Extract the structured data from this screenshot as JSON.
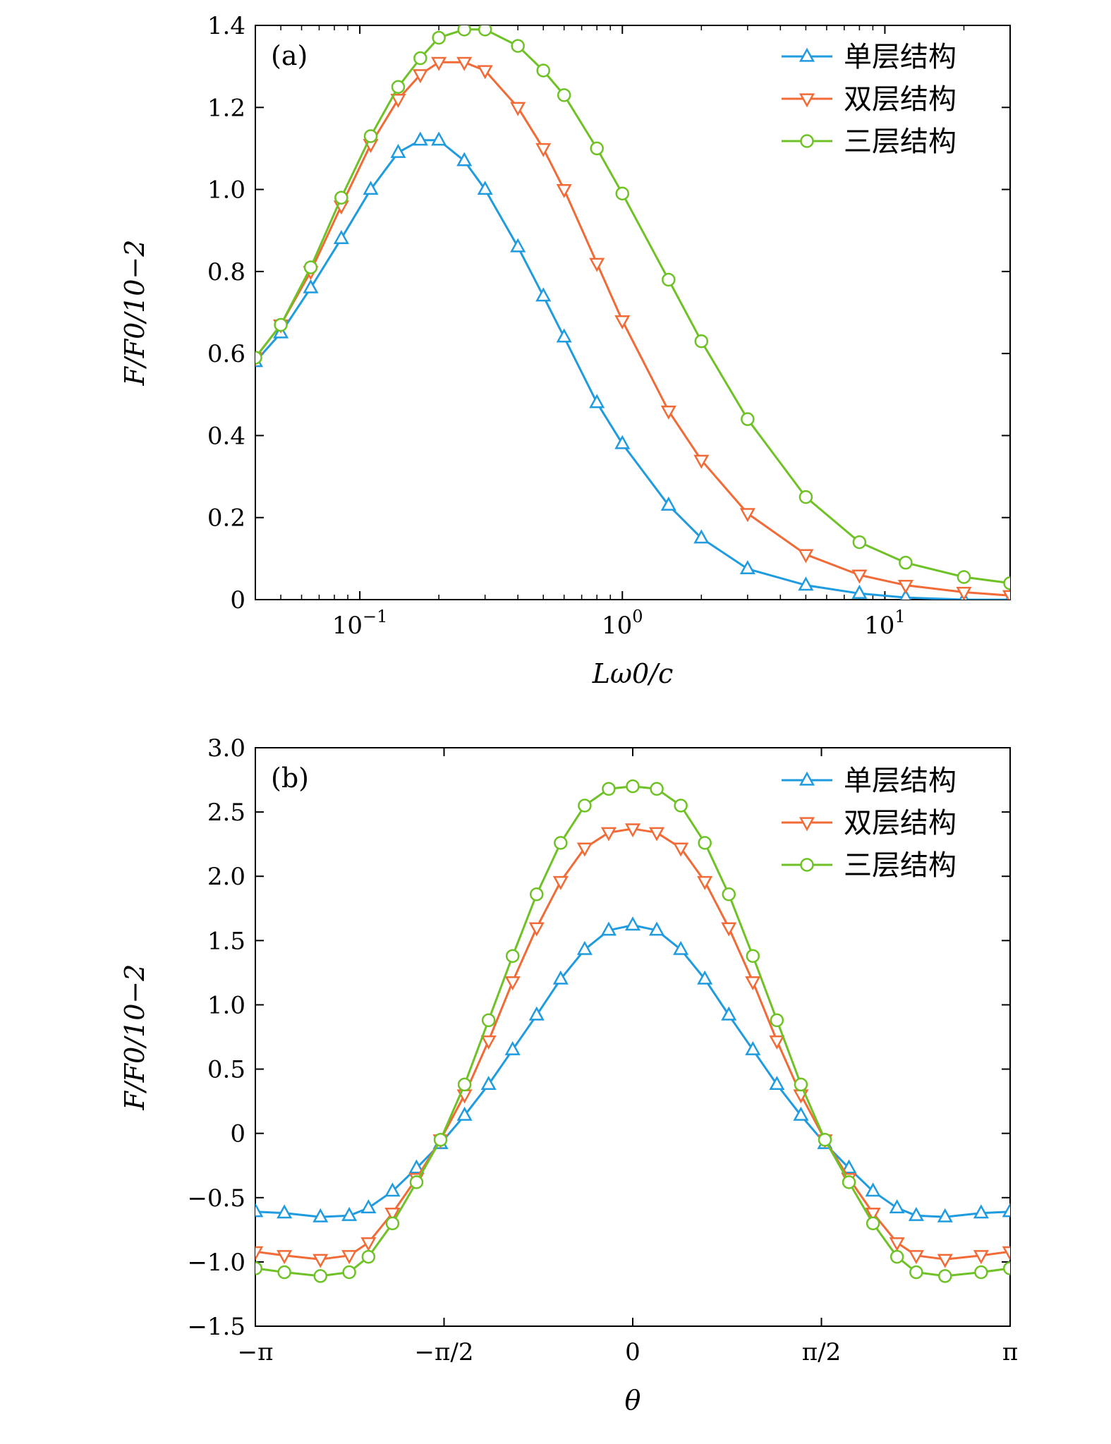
{
  "colors": {
    "single": "#1f9be0",
    "double": "#f26a36",
    "triple": "#6ec226"
  },
  "chart_data": [
    {
      "panel": "(a)",
      "type": "line",
      "xscale": "log",
      "xlabel": "Lω0/c",
      "ylabel": "F/F0/10−2",
      "xlim": [
        0.04,
        30
      ],
      "ylim": [
        0,
        1.4
      ],
      "xticks": [
        {
          "value": 0.1,
          "label": "10−1"
        },
        {
          "value": 1,
          "label": "100"
        },
        {
          "value": 10,
          "label": "101"
        }
      ],
      "yticks": [
        {
          "value": 0,
          "label": "0"
        },
        {
          "value": 0.2,
          "label": "0.2"
        },
        {
          "value": 0.4,
          "label": "0.4"
        },
        {
          "value": 0.6,
          "label": "0.6"
        },
        {
          "value": 0.8,
          "label": "0.8"
        },
        {
          "value": 1.0,
          "label": "1.0"
        },
        {
          "value": 1.2,
          "label": "1.2"
        },
        {
          "value": 1.4,
          "label": "1.4"
        }
      ],
      "legend_position": "top-right",
      "series": [
        {
          "name": "单层结构",
          "marker": "triangle-up",
          "color_key": "single",
          "x": [
            0.04,
            0.05,
            0.065,
            0.085,
            0.11,
            0.14,
            0.17,
            0.2,
            0.25,
            0.3,
            0.4,
            0.5,
            0.6,
            0.8,
            1,
            1.5,
            2,
            3,
            5,
            8,
            12,
            20,
            30
          ],
          "y": [
            0.58,
            0.65,
            0.76,
            0.88,
            1.0,
            1.09,
            1.12,
            1.12,
            1.07,
            1.0,
            0.86,
            0.74,
            0.64,
            0.48,
            0.38,
            0.23,
            0.15,
            0.075,
            0.035,
            0.015,
            0.005,
            0.0,
            0.0
          ]
        },
        {
          "name": "双层结构",
          "marker": "triangle-down",
          "color_key": "double",
          "x": [
            0.04,
            0.05,
            0.065,
            0.085,
            0.11,
            0.14,
            0.17,
            0.2,
            0.25,
            0.3,
            0.4,
            0.5,
            0.6,
            0.8,
            1,
            1.5,
            2,
            3,
            5,
            8,
            12,
            20,
            30
          ],
          "y": [
            0.59,
            0.67,
            0.8,
            0.96,
            1.11,
            1.22,
            1.28,
            1.31,
            1.31,
            1.29,
            1.2,
            1.1,
            1.0,
            0.82,
            0.68,
            0.46,
            0.34,
            0.21,
            0.11,
            0.06,
            0.035,
            0.018,
            0.01
          ]
        },
        {
          "name": "三层结构",
          "marker": "circle",
          "color_key": "triple",
          "x": [
            0.04,
            0.05,
            0.065,
            0.085,
            0.11,
            0.14,
            0.17,
            0.2,
            0.25,
            0.3,
            0.4,
            0.5,
            0.6,
            0.8,
            1,
            1.5,
            2,
            3,
            5,
            8,
            12,
            20,
            30
          ],
          "y": [
            0.59,
            0.67,
            0.81,
            0.98,
            1.13,
            1.25,
            1.32,
            1.37,
            1.39,
            1.39,
            1.35,
            1.29,
            1.23,
            1.1,
            0.99,
            0.78,
            0.63,
            0.44,
            0.25,
            0.14,
            0.09,
            0.055,
            0.04
          ]
        }
      ]
    },
    {
      "panel": "(b)",
      "type": "line",
      "xscale": "linear",
      "xlabel": "θ",
      "ylabel": "F/F0/10−2",
      "xlim": [
        -3.14159,
        3.14159
      ],
      "ylim": [
        -1.5,
        3.0
      ],
      "xticks": [
        {
          "value": -3.14159,
          "label": "−π"
        },
        {
          "value": -1.5708,
          "label": "−π/2"
        },
        {
          "value": 0,
          "label": "0"
        },
        {
          "value": 1.5708,
          "label": "π/2"
        },
        {
          "value": 3.14159,
          "label": "π"
        }
      ],
      "yticks": [
        {
          "value": -1.5,
          "label": "−1.5"
        },
        {
          "value": -1.0,
          "label": "−1.0"
        },
        {
          "value": -0.5,
          "label": "−0.5"
        },
        {
          "value": 0,
          "label": "0"
        },
        {
          "value": 0.5,
          "label": "0.5"
        },
        {
          "value": 1.0,
          "label": "1.0"
        },
        {
          "value": 1.5,
          "label": "1.5"
        },
        {
          "value": 2.0,
          "label": "2.0"
        },
        {
          "value": 2.5,
          "label": "2.5"
        },
        {
          "value": 3.0,
          "label": "3.0"
        }
      ],
      "legend_position": "top-right",
      "series": [
        {
          "name": "单层结构",
          "marker": "triangle-up",
          "color_key": "single",
          "x": [
            -3.14,
            -2.9,
            -2.6,
            -2.36,
            -2.2,
            -2.0,
            -1.8,
            -1.6,
            -1.4,
            -1.2,
            -1.0,
            -0.8,
            -0.6,
            -0.4,
            -0.2,
            0,
            0.2,
            0.4,
            0.6,
            0.8,
            1.0,
            1.2,
            1.4,
            1.6,
            1.8,
            2.0,
            2.2,
            2.36,
            2.6,
            2.9,
            3.14
          ],
          "y": [
            -0.61,
            -0.62,
            -0.65,
            -0.64,
            -0.58,
            -0.45,
            -0.27,
            -0.08,
            0.14,
            0.38,
            0.65,
            0.92,
            1.2,
            1.43,
            1.58,
            1.62,
            1.58,
            1.43,
            1.2,
            0.92,
            0.65,
            0.38,
            0.14,
            -0.08,
            -0.27,
            -0.45,
            -0.58,
            -0.64,
            -0.65,
            -0.62,
            -0.61
          ]
        },
        {
          "name": "双层结构",
          "marker": "triangle-down",
          "color_key": "double",
          "x": [
            -3.14,
            -2.9,
            -2.6,
            -2.36,
            -2.2,
            -2.0,
            -1.8,
            -1.6,
            -1.4,
            -1.2,
            -1.0,
            -0.8,
            -0.6,
            -0.4,
            -0.2,
            0,
            0.2,
            0.4,
            0.6,
            0.8,
            1.0,
            1.2,
            1.4,
            1.6,
            1.8,
            2.0,
            2.2,
            2.36,
            2.6,
            2.9,
            3.14
          ],
          "y": [
            -0.92,
            -0.95,
            -0.98,
            -0.95,
            -0.85,
            -0.62,
            -0.35,
            -0.05,
            0.3,
            0.72,
            1.18,
            1.6,
            1.96,
            2.22,
            2.34,
            2.37,
            2.34,
            2.22,
            1.96,
            1.6,
            1.18,
            0.72,
            0.3,
            -0.05,
            -0.35,
            -0.62,
            -0.85,
            -0.95,
            -0.98,
            -0.95,
            -0.92
          ]
        },
        {
          "name": "三层结构",
          "marker": "circle",
          "color_key": "triple",
          "x": [
            -3.14,
            -2.9,
            -2.6,
            -2.36,
            -2.2,
            -2.0,
            -1.8,
            -1.6,
            -1.4,
            -1.2,
            -1.0,
            -0.8,
            -0.6,
            -0.4,
            -0.2,
            0,
            0.2,
            0.4,
            0.6,
            0.8,
            1.0,
            1.2,
            1.4,
            1.6,
            1.8,
            2.0,
            2.2,
            2.36,
            2.6,
            2.9,
            3.14
          ],
          "y": [
            -1.05,
            -1.08,
            -1.11,
            -1.08,
            -0.96,
            -0.7,
            -0.38,
            -0.05,
            0.38,
            0.88,
            1.38,
            1.86,
            2.26,
            2.55,
            2.68,
            2.7,
            2.68,
            2.55,
            2.26,
            1.86,
            1.38,
            0.88,
            0.38,
            -0.05,
            -0.38,
            -0.7,
            -0.96,
            -1.08,
            -1.11,
            -1.08,
            -1.05
          ]
        }
      ]
    }
  ]
}
